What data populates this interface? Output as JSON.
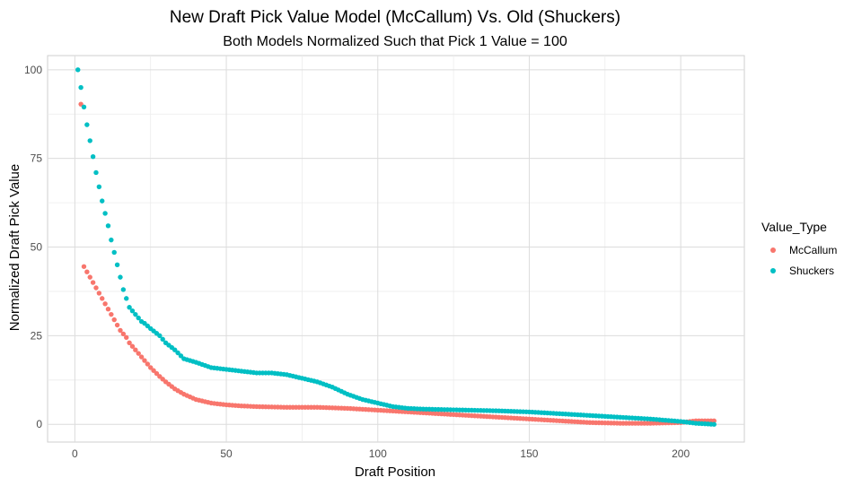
{
  "chart_data": {
    "type": "scatter",
    "title": "New Draft Pick Value Model (McCallum) Vs. Old (Shuckers)",
    "subtitle": "Both Models Normalized Such that Pick 1 Value = 100",
    "xlabel": "Draft Position",
    "ylabel": "Normalized Draft Pick Value",
    "xlim": [
      -9,
      221
    ],
    "ylim": [
      -5,
      104
    ],
    "x_ticks": [
      0,
      50,
      100,
      150,
      200
    ],
    "y_ticks": [
      0,
      25,
      50,
      75,
      100
    ],
    "x_tick_labels": [
      "0",
      "50",
      "100",
      "150",
      "200"
    ],
    "y_tick_labels": [
      "0",
      "25",
      "50",
      "75",
      "100"
    ],
    "grid": true,
    "legend": {
      "title": "Value_Type",
      "position": "right",
      "entries": [
        "McCallum",
        "Shuckers"
      ]
    },
    "series": [
      {
        "name": "McCallum",
        "color": "#F8766D",
        "points_x": [
          2,
          3,
          4,
          5,
          6,
          7,
          8,
          9,
          10,
          11,
          12,
          13,
          14,
          15,
          16,
          17,
          18,
          19,
          20,
          22,
          25,
          28,
          30,
          33,
          36,
          40,
          45,
          50,
          55,
          60,
          70,
          80,
          90,
          100,
          110,
          120,
          130,
          140,
          150,
          160,
          170,
          180,
          190,
          200,
          205,
          211
        ],
        "points_y": [
          90.3,
          44.5,
          43,
          41.5,
          40,
          38.5,
          37,
          35.5,
          34,
          32.5,
          31,
          29.5,
          28,
          26.5,
          25.5,
          24.5,
          23,
          22,
          21,
          19,
          16,
          13.5,
          12,
          10,
          8.5,
          7,
          6,
          5.5,
          5.2,
          5,
          4.8,
          4.8,
          4.5,
          4,
          3.5,
          3,
          2.5,
          2,
          1.5,
          1,
          0.5,
          0.3,
          0.3,
          0.5,
          1,
          1
        ],
        "fill_to": 211
      },
      {
        "name": "Shuckers",
        "color": "#00BFC4",
        "points_x": [
          1,
          2,
          3,
          4,
          5,
          6,
          7,
          8,
          9,
          10,
          11,
          12,
          13,
          14,
          15,
          16,
          17,
          18,
          19,
          20,
          21,
          22,
          23,
          25,
          28,
          30,
          33,
          36,
          40,
          45,
          50,
          55,
          60,
          65,
          70,
          75,
          80,
          85,
          90,
          95,
          100,
          105,
          110,
          115,
          120,
          130,
          140,
          150,
          160,
          170,
          180,
          190,
          200,
          205,
          211
        ],
        "points_y": [
          100,
          95,
          89.5,
          84.5,
          80,
          75.5,
          71,
          67,
          63,
          59.5,
          56,
          52,
          48.5,
          45,
          41.5,
          38,
          35.5,
          33,
          32,
          31,
          30,
          29,
          28.5,
          27,
          25,
          23,
          21,
          18.5,
          17.5,
          16,
          15.5,
          15,
          14.5,
          14.5,
          14,
          13,
          12,
          10.5,
          8.5,
          7,
          6,
          5,
          4.5,
          4.3,
          4.2,
          4,
          3.8,
          3.5,
          3,
          2.5,
          2,
          1.5,
          0.8,
          0.3,
          0
        ]
      }
    ]
  }
}
